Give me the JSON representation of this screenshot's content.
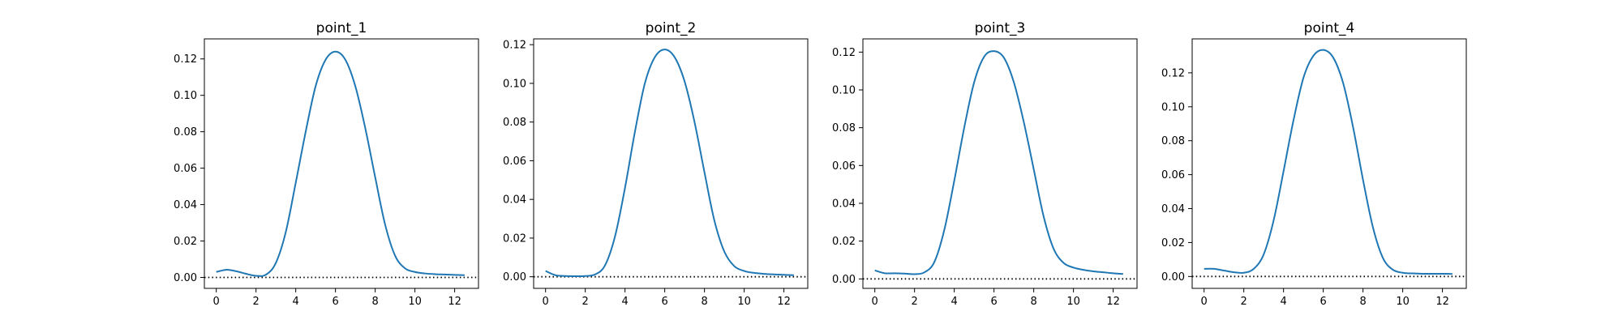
{
  "chart_data": [
    {
      "type": "line",
      "title": "point_1",
      "xlabel": "",
      "ylabel": "",
      "xlim": [
        -0.6,
        13.2
      ],
      "ylim": [
        -0.006,
        0.131
      ],
      "xticks": [
        0,
        2,
        4,
        6,
        8,
        10,
        12
      ],
      "yticks": [
        0.0,
        0.02,
        0.04,
        0.06,
        0.08,
        0.1,
        0.12
      ],
      "baseline": 0,
      "series_color": "#1f77b4",
      "x": [
        0,
        0.5,
        1,
        1.5,
        2,
        2.5,
        3,
        3.5,
        4,
        4.5,
        5,
        5.5,
        6,
        6.5,
        7,
        7.5,
        8,
        8.5,
        9,
        9.5,
        10,
        10.5,
        11,
        11.5,
        12,
        12.5
      ],
      "y": [
        0.003,
        0.0042,
        0.0034,
        0.002,
        0.0009,
        0.0015,
        0.008,
        0.025,
        0.052,
        0.08,
        0.105,
        0.1195,
        0.124,
        0.1195,
        0.105,
        0.082,
        0.055,
        0.029,
        0.012,
        0.005,
        0.003,
        0.0022,
        0.0018,
        0.0016,
        0.0014,
        0.0012
      ]
    },
    {
      "type": "line",
      "title": "point_2",
      "xlabel": "",
      "ylabel": "",
      "xlim": [
        -0.6,
        13.2
      ],
      "ylim": [
        -0.006,
        0.123
      ],
      "xticks": [
        0,
        2,
        4,
        6,
        8,
        10,
        12
      ],
      "yticks": [
        0.0,
        0.02,
        0.04,
        0.06,
        0.08,
        0.1,
        0.12
      ],
      "baseline": 0,
      "series_color": "#1f77b4",
      "x": [
        0,
        0.5,
        1,
        1.5,
        2,
        2.5,
        3,
        3.5,
        4,
        4.5,
        5,
        5.5,
        6,
        6.5,
        7,
        7.5,
        8,
        8.5,
        9,
        9.5,
        10,
        10.5,
        11,
        11.5,
        12,
        12.5
      ],
      "y": [
        0.003,
        0.0008,
        0.0004,
        0.0003,
        0.0004,
        0.0012,
        0.006,
        0.021,
        0.046,
        0.075,
        0.1,
        0.1135,
        0.1175,
        0.1135,
        0.101,
        0.08,
        0.054,
        0.029,
        0.013,
        0.0055,
        0.003,
        0.002,
        0.0015,
        0.0012,
        0.001,
        0.0008
      ]
    },
    {
      "type": "line",
      "title": "point_3",
      "xlabel": "",
      "ylabel": "",
      "xlim": [
        -0.6,
        13.2
      ],
      "ylim": [
        -0.005,
        0.127
      ],
      "xticks": [
        0,
        2,
        4,
        6,
        8,
        10,
        12
      ],
      "yticks": [
        0.0,
        0.02,
        0.04,
        0.06,
        0.08,
        0.1,
        0.12
      ],
      "baseline": 0,
      "series_color": "#1f77b4",
      "x": [
        0,
        0.5,
        1,
        1.5,
        2,
        2.5,
        3,
        3.5,
        4,
        4.5,
        5,
        5.5,
        6,
        6.5,
        7,
        7.5,
        8,
        8.5,
        9,
        9.5,
        10,
        10.5,
        11,
        11.5,
        12,
        12.5
      ],
      "y": [
        0.0045,
        0.003,
        0.003,
        0.0028,
        0.0025,
        0.0035,
        0.009,
        0.026,
        0.052,
        0.08,
        0.104,
        0.1175,
        0.1205,
        0.117,
        0.104,
        0.083,
        0.058,
        0.033,
        0.016,
        0.0085,
        0.006,
        0.0048,
        0.004,
        0.0035,
        0.003,
        0.0026
      ]
    },
    {
      "type": "line",
      "title": "point_4",
      "xlabel": "",
      "ylabel": "",
      "xlim": [
        -0.6,
        13.2
      ],
      "ylim": [
        -0.007,
        0.14
      ],
      "xticks": [
        0,
        2,
        4,
        6,
        8,
        10,
        12
      ],
      "yticks": [
        0.0,
        0.02,
        0.04,
        0.06,
        0.08,
        0.1,
        0.12
      ],
      "baseline": 0,
      "series_color": "#1f77b4",
      "x": [
        0,
        0.5,
        1,
        1.5,
        2,
        2.5,
        3,
        3.5,
        4,
        4.5,
        5,
        5.5,
        6,
        6.5,
        7,
        7.5,
        8,
        8.5,
        9,
        9.5,
        10,
        10.5,
        11,
        11.5,
        12,
        12.5
      ],
      "y": [
        0.0045,
        0.0045,
        0.0035,
        0.0025,
        0.0022,
        0.0045,
        0.013,
        0.033,
        0.062,
        0.092,
        0.117,
        0.13,
        0.1335,
        0.129,
        0.114,
        0.088,
        0.057,
        0.029,
        0.011,
        0.004,
        0.0022,
        0.0018,
        0.0016,
        0.0016,
        0.0016,
        0.0015
      ]
    }
  ]
}
